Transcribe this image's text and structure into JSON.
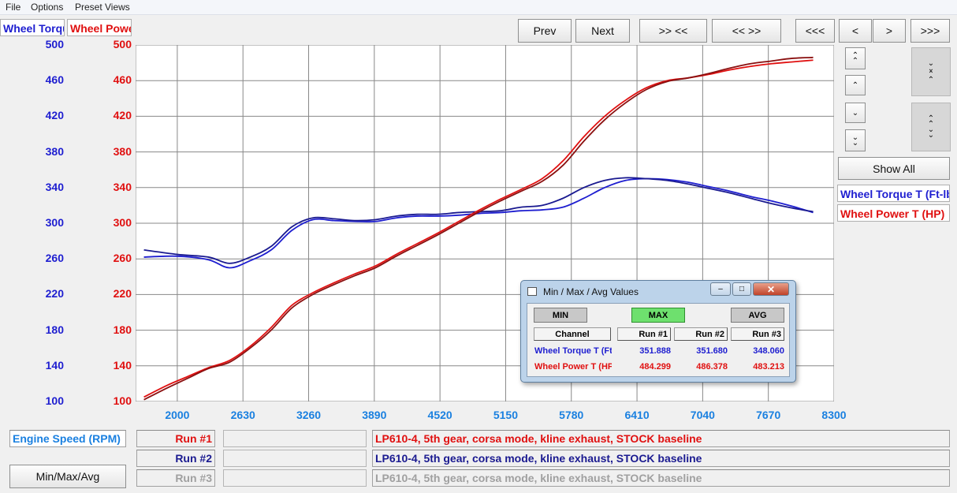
{
  "menu": [
    "File",
    "Options",
    "Preset Views"
  ],
  "tabs": {
    "torque": "Wheel Torque T (Ft-lbs)",
    "power": "Wheel Power T (HP)"
  },
  "nav": {
    "prev": "Prev",
    "next": "Next",
    "zoom_in": ">> <<",
    "zoom_out": "<< >>",
    "first": "<<<",
    "left": "<",
    "right": ">",
    "last": ">>>",
    "show_all": "Show All"
  },
  "colors": {
    "torque": "#1e1ed0",
    "power": "#e01010",
    "run3": "#a0a0a0",
    "xaxis": "#1a80e0"
  },
  "legend": {
    "torque": "Wheel Torque T (Ft-lbs)",
    "power": "Wheel Power T (HP)"
  },
  "axis": {
    "x_label": "Engine Speed (RPM)"
  },
  "runs": [
    {
      "label": "Run #1",
      "desc": "LP610-4, 5th gear, corsa mode, kline exhaust, STOCK baseline",
      "color": "#e01010"
    },
    {
      "label": "Run #2",
      "desc": "LP610-4, 5th gear, corsa mode, kline exhaust, STOCK baseline",
      "color": "#1a1a90"
    },
    {
      "label": "Run #3",
      "desc": "LP610-4, 5th gear, corsa mode, kline exhaust, STOCK baseline",
      "color": "#a0a0a0"
    }
  ],
  "minmax_button": "Min/Max/Avg",
  "dialog": {
    "title": "Min / Max / Avg Values",
    "buttons": {
      "min": "MIN",
      "max": "MAX",
      "avg": "AVG"
    },
    "headers": [
      "Channel",
      "Run #1",
      "Run #2",
      "Run #3"
    ],
    "rows": [
      {
        "channel": "Wheel Torque T (Ft-lbs)",
        "values": [
          "351.888",
          "351.680",
          "348.060"
        ],
        "color": "#1e1ed0"
      },
      {
        "channel": "Wheel Power T (HP)",
        "values": [
          "484.299",
          "486.378",
          "483.213"
        ],
        "color": "#e01010"
      }
    ]
  },
  "chart_data": {
    "type": "line",
    "xlabel": "Engine Speed (RPM)",
    "ylabel_left": "Wheel Torque T (Ft-lbs)",
    "ylabel_right": "Wheel Power T (HP)",
    "xlim": [
      1600,
      8300
    ],
    "ylim": [
      100,
      500
    ],
    "x_ticks": [
      2000,
      2630,
      3260,
      3890,
      4520,
      5150,
      5780,
      6410,
      7040,
      7670,
      8300
    ],
    "y_ticks": [
      100,
      140,
      180,
      220,
      260,
      300,
      340,
      380,
      420,
      460,
      500
    ],
    "grid": true,
    "series": [
      {
        "name": "Wheel Torque T (Ft-lbs)",
        "run": "Run #1",
        "color": "#1e1ed0",
        "x": [
          1680,
          2000,
          2300,
          2500,
          2700,
          2900,
          3100,
          3300,
          3500,
          3700,
          3900,
          4100,
          4300,
          4500,
          4700,
          4900,
          5100,
          5300,
          5500,
          5700,
          5900,
          6100,
          6300,
          6500,
          6700,
          6900,
          7100,
          7300,
          7500,
          7700,
          7900,
          8100
        ],
        "y": [
          262,
          263,
          259,
          250,
          258,
          270,
          292,
          304,
          303,
          302,
          302,
          306,
          308,
          308,
          309,
          311,
          312,
          314,
          315,
          318,
          328,
          340,
          348,
          350,
          349,
          346,
          341,
          336,
          330,
          325,
          319,
          312
        ]
      },
      {
        "name": "Wheel Torque T (Ft-lbs)",
        "run": "Run #2",
        "color": "#1a1a90",
        "x": [
          1680,
          2000,
          2300,
          2500,
          2700,
          2900,
          3100,
          3300,
          3500,
          3700,
          3900,
          4100,
          4300,
          4500,
          4700,
          4900,
          5100,
          5300,
          5500,
          5700,
          5900,
          6100,
          6300,
          6500,
          6700,
          6900,
          7100,
          7300,
          7500,
          7700,
          7900,
          8100
        ],
        "y": [
          270,
          265,
          262,
          255,
          262,
          274,
          296,
          306,
          305,
          303,
          304,
          308,
          310,
          310,
          312,
          313,
          314,
          318,
          320,
          328,
          340,
          348,
          351,
          350,
          348,
          344,
          339,
          334,
          328,
          322,
          317,
          313
        ]
      },
      {
        "name": "Wheel Power T (HP)",
        "run": "Run #1",
        "color": "#e01010",
        "x": [
          1680,
          1900,
          2100,
          2300,
          2500,
          2700,
          2900,
          3100,
          3300,
          3500,
          3700,
          3900,
          4100,
          4300,
          4500,
          4700,
          4900,
          5100,
          5300,
          5500,
          5700,
          5900,
          6100,
          6300,
          6500,
          6700,
          6900,
          7100,
          7300,
          7500,
          7700,
          7900,
          8100
        ],
        "y": [
          105,
          118,
          128,
          138,
          146,
          162,
          183,
          208,
          222,
          233,
          243,
          252,
          265,
          277,
          289,
          302,
          315,
          327,
          338,
          350,
          370,
          397,
          420,
          438,
          452,
          460,
          463,
          467,
          472,
          476,
          479,
          481,
          483
        ]
      },
      {
        "name": "Wheel Power T (HP)",
        "run": "Run #2",
        "color": "#8a1010",
        "x": [
          1680,
          1900,
          2100,
          2300,
          2500,
          2700,
          2900,
          3100,
          3300,
          3500,
          3700,
          3900,
          4100,
          4300,
          4500,
          4700,
          4900,
          5100,
          5300,
          5500,
          5700,
          5900,
          6100,
          6300,
          6500,
          6700,
          6900,
          7100,
          7300,
          7500,
          7700,
          7900,
          8100
        ],
        "y": [
          102,
          115,
          126,
          137,
          144,
          160,
          180,
          205,
          220,
          231,
          241,
          250,
          263,
          275,
          287,
          300,
          313,
          325,
          336,
          347,
          365,
          392,
          416,
          435,
          450,
          459,
          463,
          468,
          474,
          479,
          482,
          485,
          486
        ]
      }
    ]
  }
}
